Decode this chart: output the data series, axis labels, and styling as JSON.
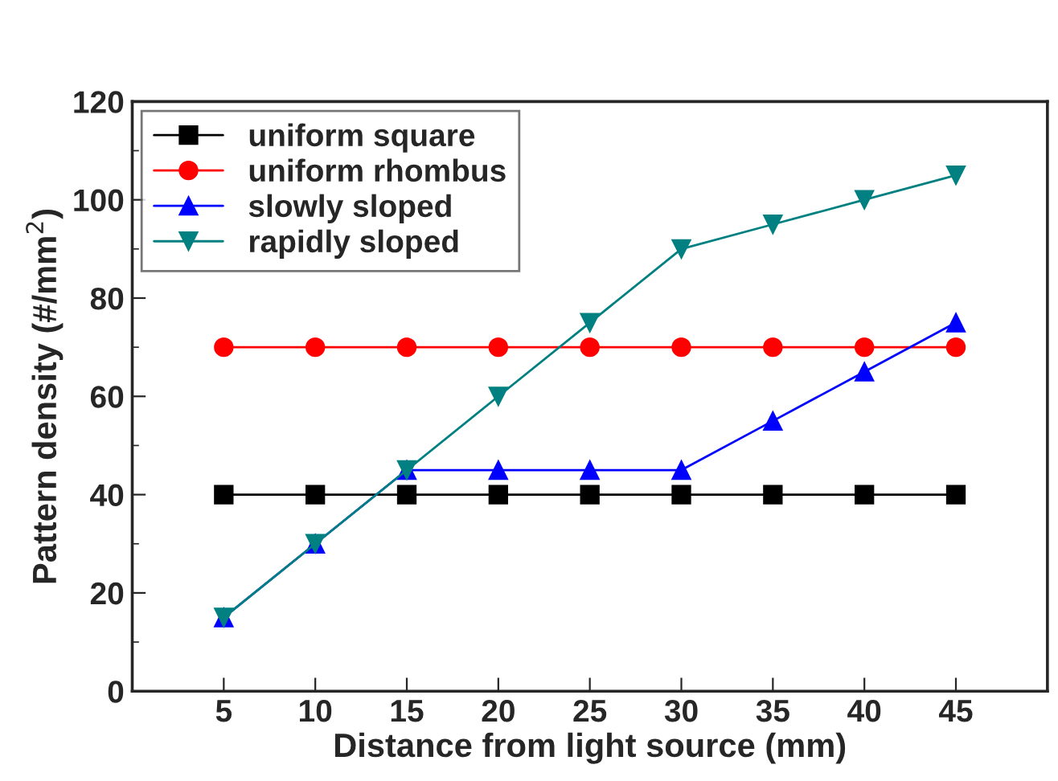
{
  "chart_data": {
    "type": "line",
    "xlabel": "Distance from light source (mm)",
    "ylabel": "Pattern density (#/mm$^{2}$)",
    "x": [
      5,
      10,
      15,
      20,
      25,
      30,
      35,
      40,
      45
    ],
    "series": [
      {
        "name": "uniform square",
        "color": "#000000",
        "marker": "square",
        "values": [
          40,
          40,
          40,
          40,
          40,
          40,
          40,
          40,
          40
        ]
      },
      {
        "name": "uniform rhombus",
        "color": "#ff0000",
        "marker": "circle",
        "values": [
          70,
          70,
          70,
          70,
          70,
          70,
          70,
          70,
          70
        ]
      },
      {
        "name": "slowly sloped",
        "color": "#0000ff",
        "marker": "triangle",
        "values": [
          15,
          30,
          45,
          45,
          45,
          45,
          55,
          65,
          75
        ]
      },
      {
        "name": "rapidly sloped",
        "color": "#008080",
        "marker": "triangle_down",
        "values": [
          15,
          30,
          45,
          60,
          75,
          90,
          95,
          100,
          105
        ]
      }
    ],
    "xlim": [
      0,
      50
    ],
    "xticks": [
      5,
      10,
      15,
      20,
      25,
      30,
      35,
      40,
      45
    ],
    "ylim": [
      0,
      120
    ],
    "yticks": [
      0,
      {
        "value": 10,
        "label": null
      },
      20,
      {
        "value": 30,
        "label": null
      },
      40,
      {
        "value": 50,
        "label": null
      },
      60,
      {
        "value": 70,
        "label": null
      },
      80,
      {
        "value": 90,
        "label": null
      },
      100,
      {
        "value": 110,
        "label": null
      },
      120
    ],
    "grid": false,
    "legend": "top left",
    "line_style": "solid"
  }
}
